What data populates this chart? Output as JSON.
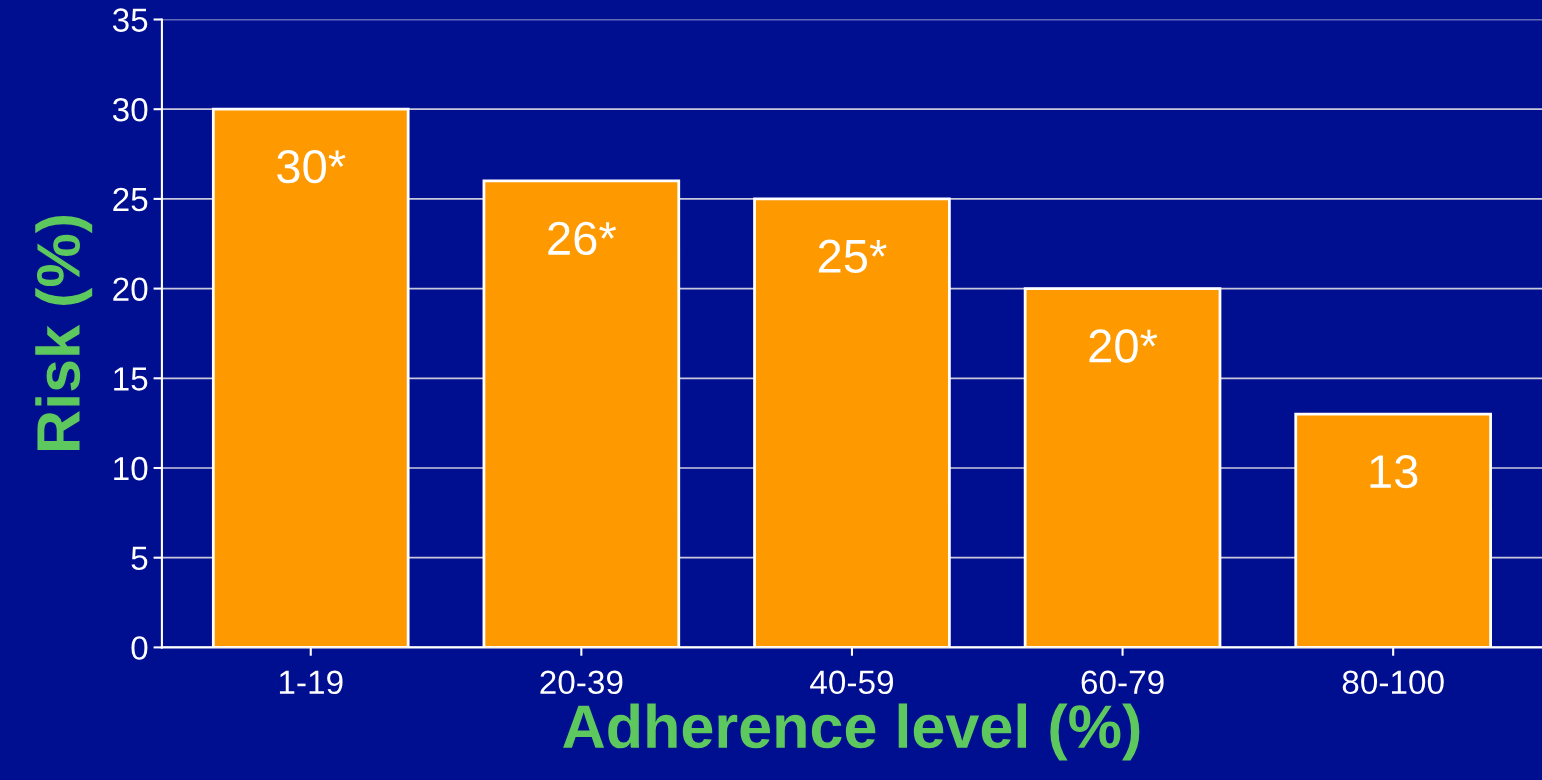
{
  "chart_data": {
    "type": "bar",
    "xlabel": "Adherence level (%)",
    "ylabel": "Risk (%)",
    "categories": [
      "1-19",
      "20-39",
      "40-59",
      "60-79",
      "80-100"
    ],
    "values": [
      30,
      26,
      25,
      20,
      13
    ],
    "value_labels": [
      "30*",
      "26*",
      "25*",
      "20*",
      "13"
    ],
    "color": "#ff9900",
    "ylim": [
      0,
      35
    ],
    "yticks": [
      0,
      5,
      10,
      15,
      20,
      25,
      30,
      35
    ],
    "grid": "y",
    "legend": false
  }
}
